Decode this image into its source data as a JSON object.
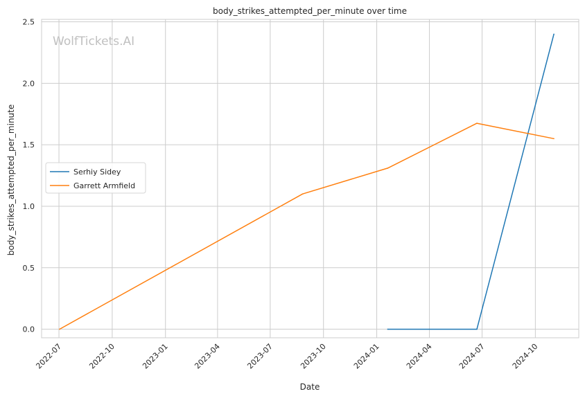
{
  "chart_data": {
    "type": "line",
    "title": "body_strikes_attempted_per_minute over time",
    "xlabel": "Date",
    "ylabel": "body_strikes_attempted_per_minute",
    "watermark": "WolfTickets.AI",
    "x_tick_labels": [
      "2022-07",
      "2022-10",
      "2023-01",
      "2023-04",
      "2023-07",
      "2023-10",
      "2024-01",
      "2024-04",
      "2024-07",
      "2024-10"
    ],
    "y_tick_labels": [
      "0.0",
      "0.5",
      "1.0",
      "1.5",
      "2.0",
      "2.5"
    ],
    "y_ticks": [
      0,
      0.5,
      1.0,
      1.5,
      2.0,
      2.5
    ],
    "ylim": [
      -0.07,
      2.52
    ],
    "xlim": [
      "2022-06-01",
      "2024-12-15"
    ],
    "grid": true,
    "legend_position": "center-left",
    "series": [
      {
        "name": "Serhiy Sidey",
        "color": "#1f77b4",
        "x": [
          "2024-01-20",
          "2024-06-22",
          "2024-11-02"
        ],
        "y": [
          0.0,
          0.0,
          2.4
        ]
      },
      {
        "name": "Garrett Armfield",
        "color": "#ff7f0e",
        "x": [
          "2022-07-02",
          "2023-08-26",
          "2024-01-20",
          "2024-06-22",
          "2024-11-02"
        ],
        "y": [
          0.0,
          1.1,
          1.31,
          1.675,
          1.55
        ]
      }
    ]
  }
}
